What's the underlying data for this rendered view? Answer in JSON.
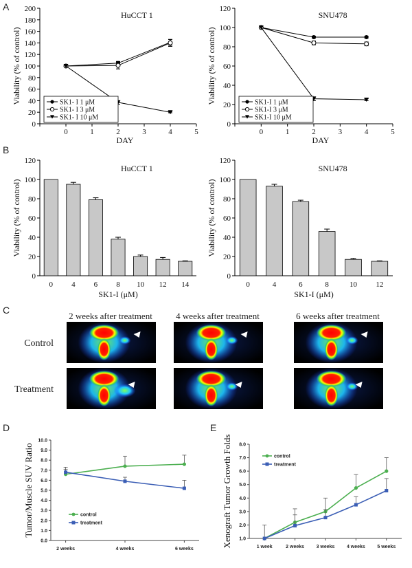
{
  "panel_letters": [
    "A",
    "B",
    "C",
    "D",
    "E"
  ],
  "colors": {
    "green": "#4caf50",
    "blue": "#3b5eb5",
    "bar": "#c8c8c8"
  },
  "chart_data": [
    {
      "id": "A-left",
      "type": "line",
      "title": "HuCCT 1",
      "xlabel": "DAY",
      "ylabel": "Viability (% of control)",
      "xlim": [
        -1,
        5
      ],
      "ylim": [
        0,
        200
      ],
      "xticks": [
        -1,
        0,
        1,
        2,
        3,
        4,
        5
      ],
      "yticks": [
        0,
        20,
        40,
        60,
        80,
        100,
        120,
        140,
        160,
        180,
        200
      ],
      "series": [
        {
          "name": "SK1- I 1 μM",
          "marker": "filled-circle",
          "x": [
            0,
            2,
            4
          ],
          "y": [
            100,
            105,
            141
          ],
          "err": [
            0,
            3,
            5
          ]
        },
        {
          "name": "SK1- I 3 μM",
          "marker": "open-circle",
          "x": [
            0,
            2,
            4
          ],
          "y": [
            100,
            101,
            140
          ],
          "err": [
            0,
            6,
            6
          ]
        },
        {
          "name": "SK1- I 10 μM",
          "marker": "filled-triangle-down",
          "x": [
            0,
            2,
            4
          ],
          "y": [
            100,
            37,
            20
          ],
          "err": [
            0,
            3,
            1
          ]
        }
      ]
    },
    {
      "id": "A-right",
      "type": "line",
      "title": "SNU478",
      "xlabel": "DAY",
      "ylabel": "Viability (% of control)",
      "xlim": [
        -1,
        5
      ],
      "ylim": [
        0,
        120
      ],
      "xticks": [
        -1,
        0,
        1,
        2,
        3,
        4,
        5
      ],
      "yticks": [
        0,
        20,
        40,
        60,
        80,
        100,
        120
      ],
      "series": [
        {
          "name": "SK1-I 1 μM",
          "marker": "filled-circle",
          "x": [
            0,
            2,
            4
          ],
          "y": [
            100,
            90,
            90
          ],
          "err": [
            0,
            1,
            1
          ]
        },
        {
          "name": "SK1-I 3 μM",
          "marker": "open-circle",
          "x": [
            0,
            2,
            4
          ],
          "y": [
            100,
            84,
            83
          ],
          "err": [
            0,
            2,
            2
          ]
        },
        {
          "name": "SK1-I 10 μM",
          "marker": "filled-triangle-down",
          "x": [
            0,
            2,
            4
          ],
          "y": [
            100,
            26,
            25
          ],
          "err": [
            0,
            2,
            1
          ]
        }
      ]
    },
    {
      "id": "B-left",
      "type": "bar",
      "title": "HuCCT 1",
      "xlabel": "SK1-I (μM)",
      "ylabel": "Viability (% of control)",
      "ylim": [
        0,
        120
      ],
      "yticks": [
        0,
        20,
        40,
        60,
        80,
        100,
        120
      ],
      "categories": [
        "0",
        "4",
        "6",
        "8",
        "10",
        "12",
        "14"
      ],
      "values": [
        100,
        95,
        79,
        38,
        20,
        17,
        15
      ],
      "err": [
        0,
        2,
        2,
        2,
        1.5,
        2,
        0.5
      ]
    },
    {
      "id": "B-right",
      "type": "bar",
      "title": "SNU478",
      "xlabel": "SK1-I (μM)",
      "ylabel": "Viability (% of control)",
      "ylim": [
        0,
        120
      ],
      "yticks": [
        0,
        20,
        40,
        60,
        80,
        100,
        120
      ],
      "categories": [
        "0",
        "4",
        "6",
        "8",
        "10",
        "12"
      ],
      "values": [
        100,
        93,
        77,
        46,
        17,
        15
      ],
      "err": [
        0,
        2,
        1.5,
        2.5,
        1,
        0.5
      ]
    },
    {
      "id": "D",
      "type": "line",
      "title": "",
      "xlabel": "",
      "ylabel": "Tumor/Muscle SUV Ratio",
      "ylim": [
        0,
        10
      ],
      "yticks": [
        "0.0",
        "1.0",
        "2.0",
        "3.0",
        "4.0",
        "5.0",
        "6.0",
        "7.0",
        "8.0",
        "9.0",
        "10.0"
      ],
      "categories": [
        "2 weeks",
        "4 weeks",
        "6 weeks"
      ],
      "series": [
        {
          "name": "control",
          "color": "#4caf50",
          "marker": "circle",
          "values": [
            6.6,
            7.4,
            7.6
          ],
          "err": [
            0.5,
            1.0,
            0.9
          ]
        },
        {
          "name": "treatment",
          "color": "#3b5eb5",
          "marker": "square",
          "values": [
            6.8,
            5.9,
            5.2
          ],
          "err": [
            0.5,
            0.4,
            0.8
          ]
        }
      ]
    },
    {
      "id": "E",
      "type": "line",
      "title": "",
      "xlabel": "",
      "ylabel": "Xenograft Tumor Growth Folds",
      "ylim": [
        1,
        8
      ],
      "yticks": [
        "1.0",
        "2.0",
        "3.0",
        "4.0",
        "5.0",
        "6.0",
        "7.0",
        "8.0"
      ],
      "categories": [
        "1 week",
        "2 weeks",
        "3 weeks",
        "4 weeks",
        "5 weeks"
      ],
      "series": [
        {
          "name": "control",
          "color": "#4caf50",
          "marker": "circle",
          "values": [
            1.0,
            2.2,
            3.0,
            4.75,
            6.0
          ],
          "err": [
            1.0,
            1.0,
            1.0,
            1.0,
            1.0
          ]
        },
        {
          "name": "treatment",
          "color": "#3b5eb5",
          "marker": "square",
          "values": [
            1.0,
            1.95,
            2.55,
            3.5,
            4.55
          ],
          "err": [
            0,
            0.8,
            0.6,
            0.6,
            0.9
          ]
        }
      ]
    }
  ],
  "pet_panel": {
    "columns": [
      "2 weeks after treatment",
      "4 weeks after treatment",
      "6 weeks after treatment"
    ],
    "rows": [
      "Control",
      "Treatment"
    ]
  }
}
